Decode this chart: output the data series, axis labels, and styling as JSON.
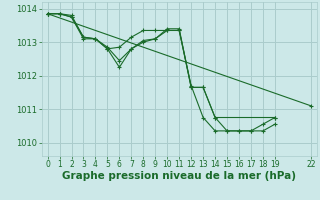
{
  "bg_color": "#cce8e8",
  "grid_color": "#aacccc",
  "line_color": "#1a6b2a",
  "marker_color": "#1a6b2a",
  "xlabel": "Graphe pression niveau de la mer (hPa)",
  "xlabel_fontsize": 7.5,
  "xlim": [
    -0.5,
    22.5
  ],
  "ylim": [
    1009.6,
    1014.2
  ],
  "yticks": [
    1010,
    1011,
    1012,
    1013,
    1014
  ],
  "xticks": [
    0,
    1,
    2,
    3,
    4,
    5,
    6,
    7,
    8,
    9,
    10,
    11,
    12,
    13,
    14,
    15,
    16,
    17,
    18,
    19,
    22
  ],
  "series": [
    {
      "x": [
        0,
        1,
        2,
        3,
        4,
        5,
        6,
        7,
        8,
        9,
        10,
        11,
        12,
        13,
        14,
        15,
        16,
        17,
        18,
        19
      ],
      "y": [
        1013.85,
        1013.85,
        1013.8,
        1013.15,
        1013.1,
        1012.85,
        1012.45,
        1012.8,
        1013.05,
        1013.1,
        1013.35,
        1013.35,
        1011.7,
        1010.75,
        1010.35,
        1010.35,
        1010.35,
        1010.35,
        1010.35,
        1010.55
      ]
    },
    {
      "x": [
        0,
        1,
        2,
        3,
        4,
        5,
        6,
        7,
        8,
        9,
        10,
        11,
        12,
        13,
        14,
        15,
        16,
        17,
        18,
        19
      ],
      "y": [
        1013.85,
        1013.85,
        1013.75,
        1013.15,
        1013.1,
        1012.8,
        1012.85,
        1013.15,
        1013.35,
        1013.35,
        1013.35,
        1013.35,
        1011.65,
        1011.65,
        1010.75,
        1010.35,
        1010.35,
        1010.35,
        1010.55,
        1010.75
      ]
    },
    {
      "x": [
        0,
        1,
        2,
        3,
        4,
        5,
        6,
        7,
        8,
        9,
        10,
        11,
        12,
        13,
        14,
        19
      ],
      "y": [
        1013.85,
        1013.85,
        1013.75,
        1013.1,
        1013.1,
        1012.8,
        1012.25,
        1012.8,
        1013.0,
        1013.1,
        1013.4,
        1013.4,
        1011.65,
        1011.65,
        1010.75,
        1010.75
      ]
    },
    {
      "x": [
        0,
        22
      ],
      "y": [
        1013.85,
        1011.1
      ]
    }
  ]
}
